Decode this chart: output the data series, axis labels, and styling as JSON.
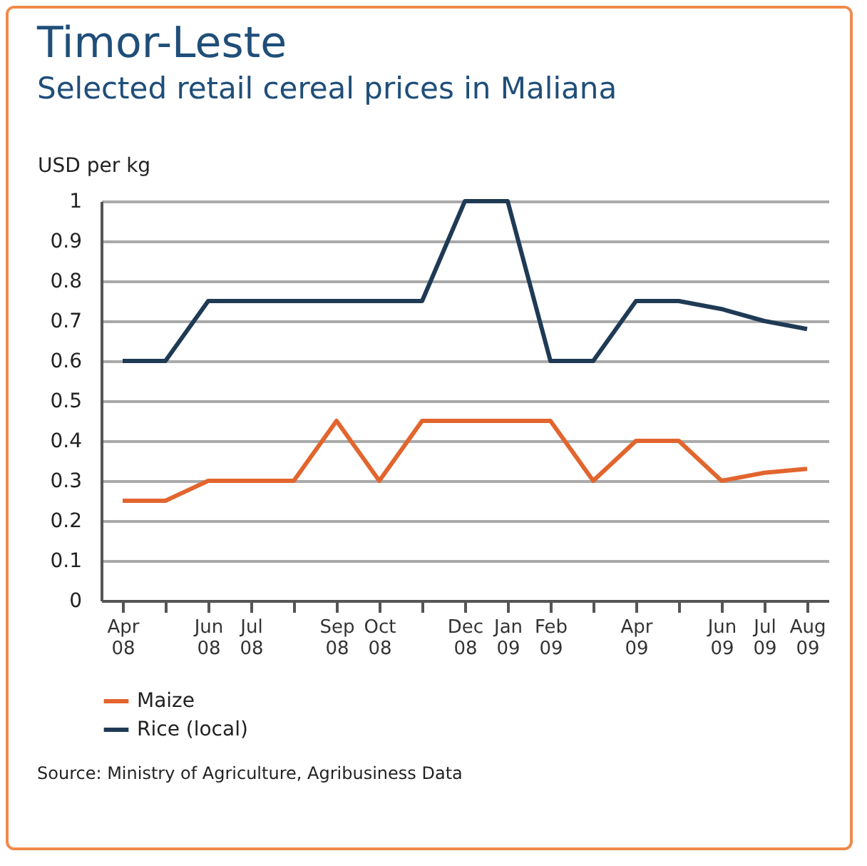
{
  "chart_data": {
    "type": "line",
    "title": "Timor-Leste",
    "subtitle": "Selected retail cereal prices in Maliana",
    "ylabel": "USD per kg",
    "categories": [
      "Apr 08",
      null,
      "Jun 08",
      "Jul 08",
      null,
      "Sep 08",
      "Oct 08",
      null,
      "Dec 08",
      "Jan 09",
      "Feb 09",
      null,
      "Apr 09",
      null,
      "Jun 09",
      "Jul 09",
      "Aug 09"
    ],
    "series": [
      {
        "name": "Maize",
        "color": "#e2652e",
        "values": [
          0.25,
          0.25,
          0.3,
          0.3,
          0.3,
          0.45,
          0.3,
          0.45,
          0.45,
          0.45,
          0.45,
          0.3,
          0.4,
          0.4,
          0.3,
          0.32,
          0.33
        ]
      },
      {
        "name": "Rice (local)",
        "color": "#1f3a54",
        "values": [
          0.6,
          0.6,
          0.75,
          0.75,
          0.75,
          0.75,
          0.75,
          0.75,
          1,
          1,
          0.6,
          0.6,
          0.75,
          0.75,
          0.73,
          0.7,
          0.68
        ]
      }
    ],
    "ylim": [
      0,
      1
    ],
    "yticks": [
      0,
      0.1,
      0.2,
      0.3,
      0.4,
      0.5,
      0.6,
      0.7,
      0.8,
      0.9,
      1
    ],
    "grid": "y",
    "legend": "bottom left",
    "marker": "none",
    "line_style": "solid",
    "annotations": [
      "Source: Ministry of Agriculture, Agribusiness Data"
    ]
  }
}
